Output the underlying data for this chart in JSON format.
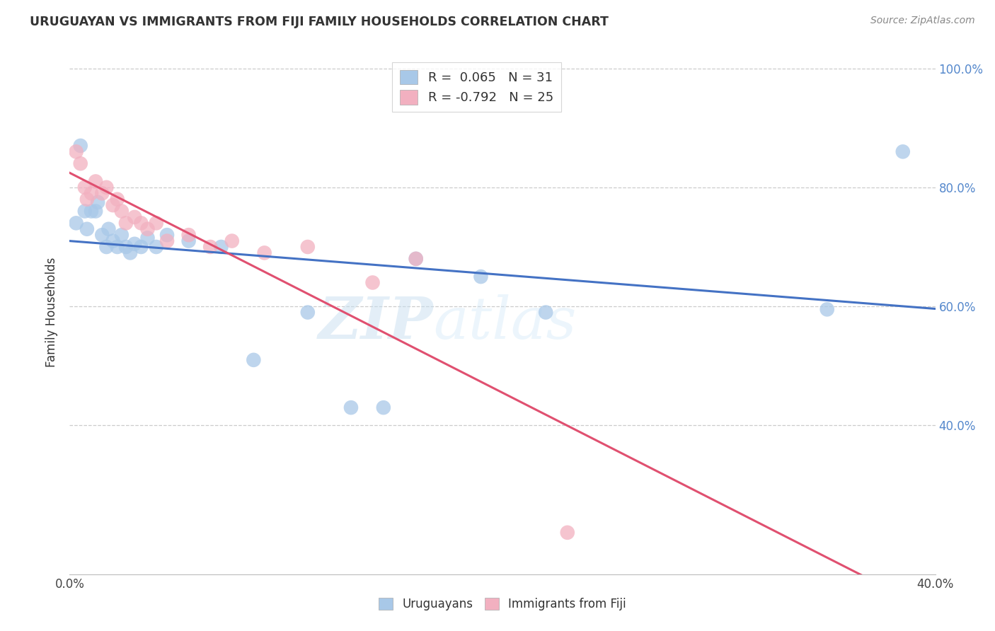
{
  "title": "URUGUAYAN VS IMMIGRANTS FROM FIJI FAMILY HOUSEHOLDS CORRELATION CHART",
  "source": "Source: ZipAtlas.com",
  "ylabel": "Family Households",
  "legend_labels": [
    "Uruguayans",
    "Immigrants from Fiji"
  ],
  "uruguayan_R": 0.065,
  "uruguayan_N": 31,
  "fiji_R": -0.792,
  "fiji_N": 25,
  "xlim": [
    0.0,
    0.4
  ],
  "ylim": [
    0.15,
    1.03
  ],
  "x_ticks": [
    0.0,
    0.05,
    0.1,
    0.15,
    0.2,
    0.25,
    0.3,
    0.35,
    0.4
  ],
  "x_tick_labels": [
    "0.0%",
    "",
    "",
    "",
    "",
    "",
    "",
    "",
    "40.0%"
  ],
  "y_ticks": [
    0.4,
    0.6,
    0.8,
    1.0
  ],
  "y_tick_labels": [
    "40.0%",
    "60.0%",
    "80.0%",
    "100.0%"
  ],
  "color_uruguayan": "#a8c8e8",
  "color_fiji": "#f2b0c0",
  "line_color_uruguayan": "#4472c4",
  "line_color_fiji": "#e05070",
  "watermark_zip": "ZIP",
  "watermark_atlas": "atlas",
  "background": "#ffffff",
  "uruguayan_x": [
    0.003,
    0.005,
    0.007,
    0.008,
    0.01,
    0.012,
    0.013,
    0.015,
    0.017,
    0.018,
    0.02,
    0.022,
    0.024,
    0.026,
    0.028,
    0.03,
    0.033,
    0.036,
    0.04,
    0.045,
    0.055,
    0.07,
    0.085,
    0.11,
    0.13,
    0.145,
    0.16,
    0.19,
    0.22,
    0.35,
    0.385
  ],
  "uruguayan_y": [
    0.74,
    0.87,
    0.76,
    0.73,
    0.76,
    0.76,
    0.775,
    0.72,
    0.7,
    0.73,
    0.71,
    0.7,
    0.72,
    0.7,
    0.69,
    0.705,
    0.7,
    0.715,
    0.7,
    0.72,
    0.71,
    0.7,
    0.51,
    0.59,
    0.43,
    0.43,
    0.68,
    0.65,
    0.59,
    0.595,
    0.86
  ],
  "fiji_x": [
    0.003,
    0.005,
    0.007,
    0.008,
    0.01,
    0.012,
    0.015,
    0.017,
    0.02,
    0.022,
    0.024,
    0.026,
    0.03,
    0.033,
    0.036,
    0.04,
    0.045,
    0.055,
    0.065,
    0.075,
    0.09,
    0.11,
    0.14,
    0.16,
    0.23
  ],
  "fiji_y": [
    0.86,
    0.84,
    0.8,
    0.78,
    0.79,
    0.81,
    0.79,
    0.8,
    0.77,
    0.78,
    0.76,
    0.74,
    0.75,
    0.74,
    0.73,
    0.74,
    0.71,
    0.72,
    0.7,
    0.71,
    0.69,
    0.7,
    0.64,
    0.68,
    0.22
  ]
}
